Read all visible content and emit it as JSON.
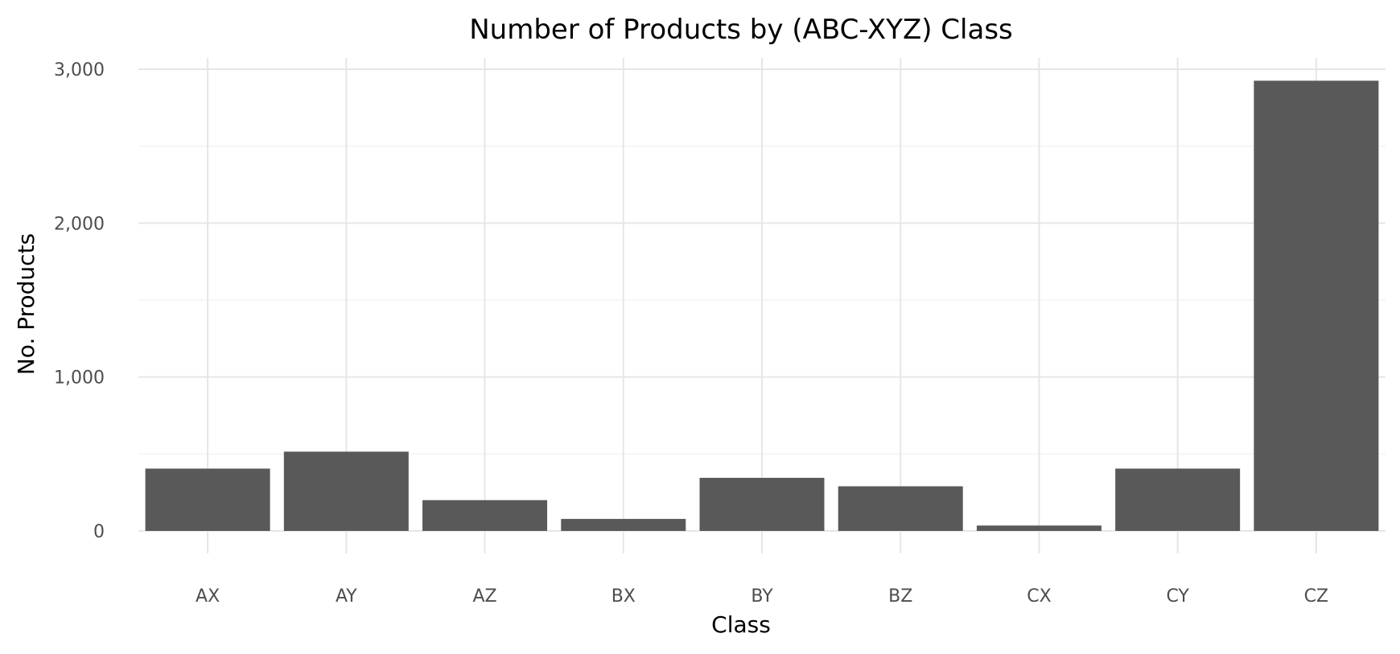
{
  "chart_data": {
    "type": "bar",
    "title": "Number of Products by (ABC-XYZ) Class",
    "xlabel": "Class",
    "ylabel": "No. Products",
    "categories": [
      "AX",
      "AY",
      "AZ",
      "BX",
      "BY",
      "BZ",
      "CX",
      "CY",
      "CZ"
    ],
    "values": [
      405,
      515,
      200,
      78,
      345,
      290,
      35,
      405,
      2925
    ],
    "ylim": [
      0,
      3000
    ],
    "yticks": [
      0,
      1000,
      2000,
      3000
    ],
    "ytick_labels": [
      "0",
      "1,000",
      "2,000",
      "3,000"
    ],
    "grid": true,
    "bar_color": "#595959",
    "grid_color": "#e6e6e6"
  }
}
